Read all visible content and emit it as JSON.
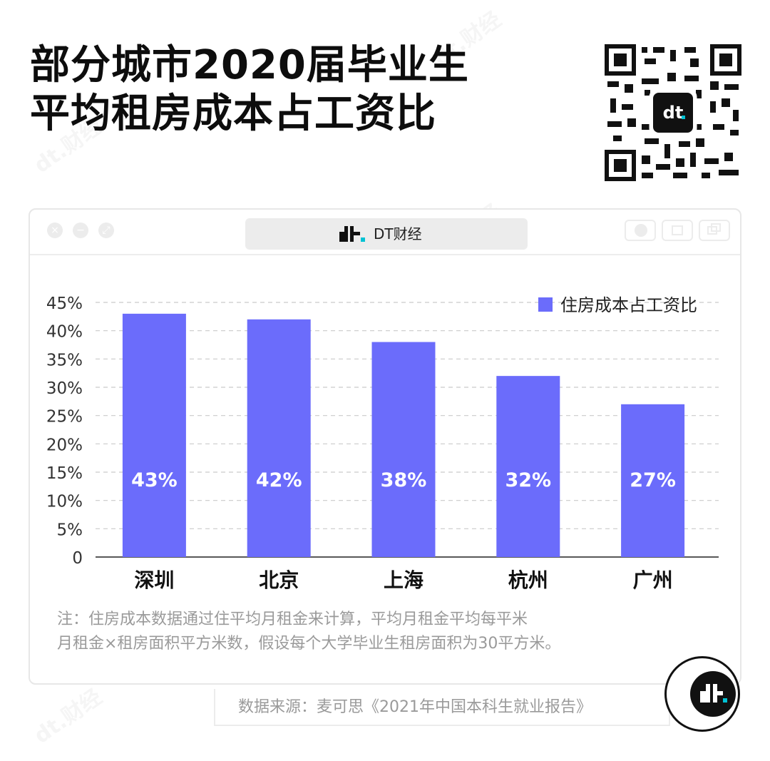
{
  "title_line1": "部分城市2020届毕业生",
  "title_line2": "平均租房成本占工资比",
  "window": {
    "address_text": "DT财经"
  },
  "chart_data": {
    "type": "bar",
    "categories": [
      "深圳",
      "北京",
      "上海",
      "杭州",
      "广州"
    ],
    "series": [
      {
        "name": "住房成本占工资比",
        "values": [
          43,
          42,
          38,
          32,
          27
        ],
        "color": "#6b6cfb"
      }
    ],
    "data_labels": [
      "43%",
      "42%",
      "38%",
      "32%",
      "27%"
    ],
    "ylim": [
      0,
      45
    ],
    "yticks": [
      "0",
      "5%",
      "10%",
      "15%",
      "20%",
      "25%",
      "30%",
      "35%",
      "40%",
      "45%"
    ],
    "grid": true,
    "legend_position": "top-right"
  },
  "note_line1": "注：住房成本数据通过住平均月租金来计算，平均月租金平均每平米",
  "note_line2": "月租金×租房面积平方米数，假设每个大学毕业生租房面积为30平方米。",
  "source": "数据来源：麦可思《2021年中国本科生就业报告》",
  "colors": {
    "bar": "#6b6cfb",
    "accent": "#00c2d4",
    "text": "#0d0d0d",
    "muted": "#9a9a9a"
  },
  "icons": [
    "qr-code-icon",
    "close-icon",
    "minimize-icon",
    "maximize-icon",
    "dt-logo-icon",
    "home-icon",
    "copy-icon"
  ]
}
